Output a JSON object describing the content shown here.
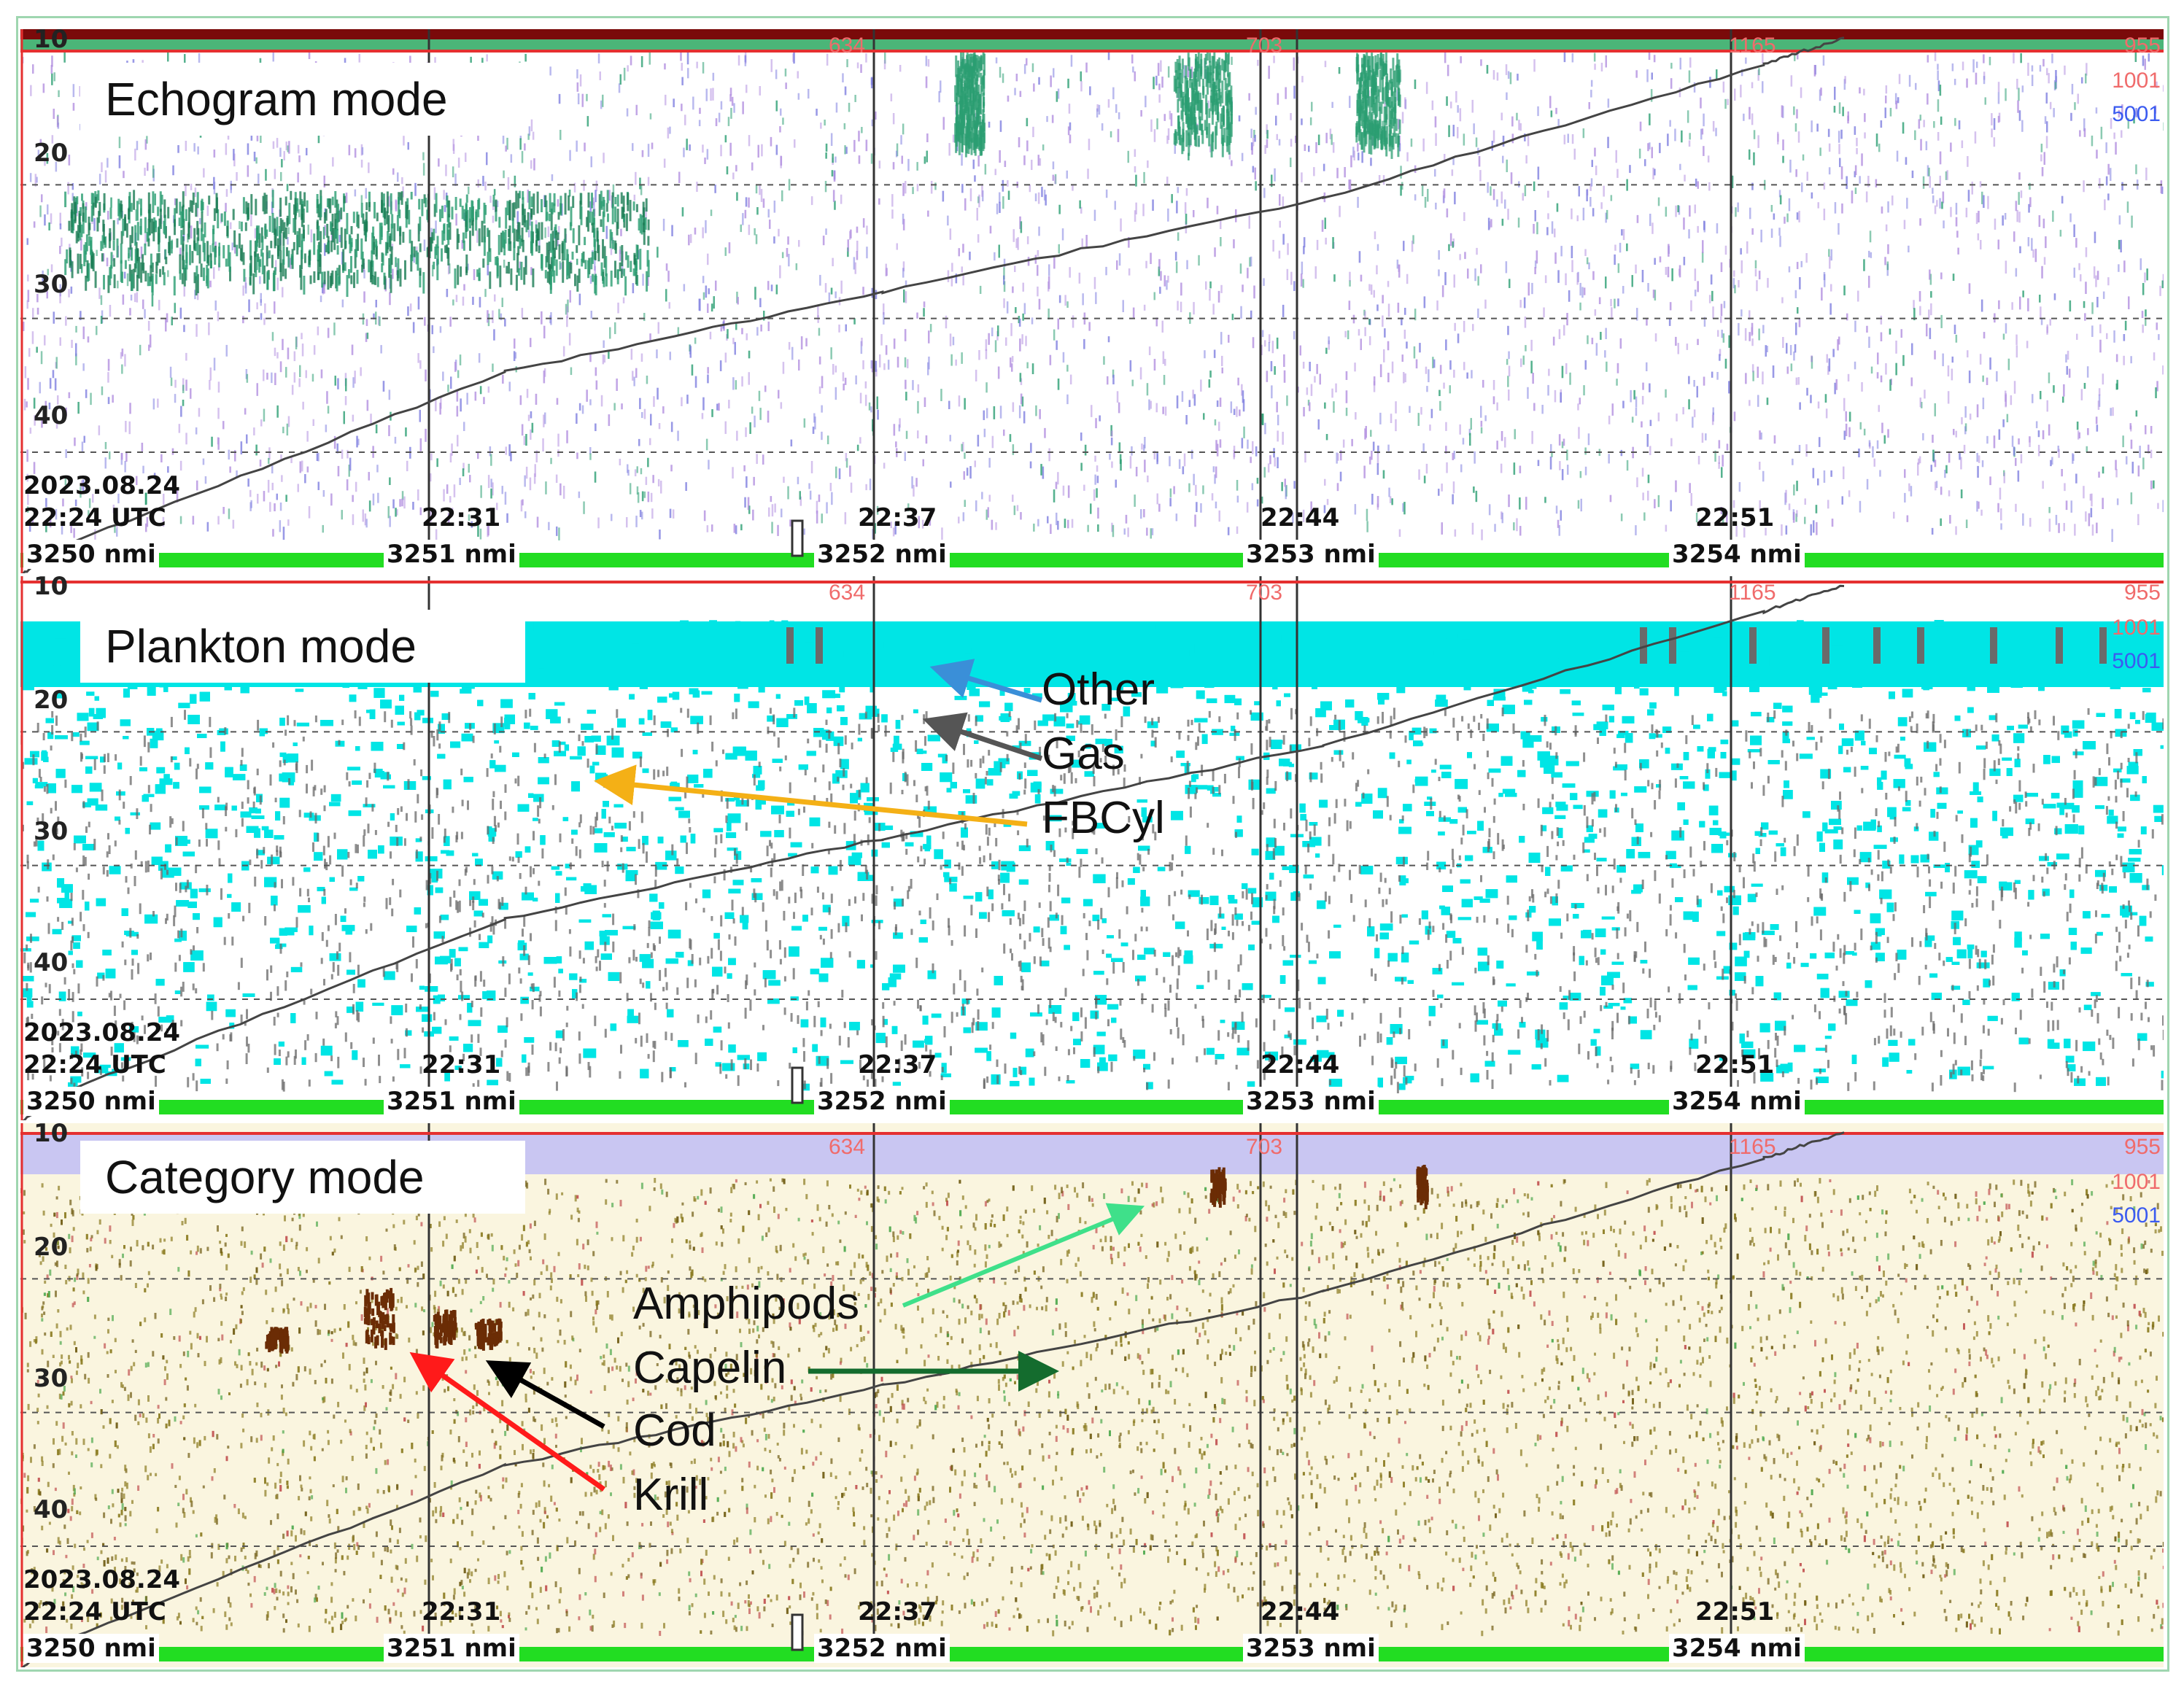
{
  "colors": {
    "echogram_points": [
      "#b38fe0",
      "#2b9e72",
      "#1b7d55",
      "#8080e0"
    ],
    "plankton_fill": "#00e5e5",
    "plankton_gas": "#6a6a6a",
    "category_background": "#faf5df",
    "category_points": [
      "#8a7a20",
      "#6d5a10",
      "#c05050",
      "#4ca84c"
    ],
    "category_dark": "#6b2c05",
    "bottom_line": "#444444",
    "nav_bar": "#22dd22",
    "top_red": "#e53030",
    "category_band": "#c9c6f2",
    "arrow_other": "#3a8fd8",
    "arrow_gas": "#555555",
    "arrow_fbcyl": "#f4b016",
    "arrow_amphipods": "#3fe08a",
    "arrow_capelin": "#146c2e",
    "arrow_cod": "#000000",
    "arrow_krill": "#ff1a1a"
  },
  "date_label": "2023.08.24",
  "start_time": "22:24 UTC",
  "depth_ticks": [
    "10",
    "20",
    "30",
    "40"
  ],
  "time_ticks": [
    "22:31",
    "22:37",
    "22:44",
    "22:51"
  ],
  "nmi_ticks": [
    "3250 nmi",
    "3251 nmi",
    "3252 nmi",
    "3253 nmi",
    "3254 nmi"
  ],
  "count_labels": {
    "mid": [
      "634",
      "703",
      "1165"
    ],
    "right": [
      "955",
      "1001",
      "5001"
    ]
  },
  "panels": [
    {
      "mode": "Echogram mode"
    },
    {
      "mode": "Plankton mode",
      "annotations": [
        "Other",
        "Gas",
        "FBCyl"
      ]
    },
    {
      "mode": "Category mode",
      "annotations": [
        "Amphipods",
        "Capelin",
        "Cod",
        "Krill"
      ]
    }
  ],
  "chart_data": {
    "type": "scatter",
    "title": "",
    "xlabel": "",
    "ylabel": "",
    "y_axis_ticks": [
      10,
      20,
      30,
      40
    ],
    "y_reversed": true,
    "x_time_ticks": [
      "22:24 UTC",
      "22:31",
      "22:37",
      "22:44",
      "22:51"
    ],
    "x_distance_ticks_nmi": [
      3250,
      3251,
      3252,
      3253,
      3254
    ],
    "bottom_line_depth": [
      {
        "time": "22:24",
        "depth": 47
      },
      {
        "time": "22:31",
        "depth": 34
      },
      {
        "time": "22:37",
        "depth": 28
      },
      {
        "time": "22:44",
        "depth": 21
      },
      {
        "time": "22:51",
        "depth": 11
      }
    ],
    "panels": [
      "Echogram mode",
      "Plankton mode",
      "Category mode"
    ],
    "plankton_classes": [
      "Other",
      "Gas",
      "FBCyl"
    ],
    "category_classes": [
      "Amphipods",
      "Capelin",
      "Cod",
      "Krill"
    ]
  }
}
